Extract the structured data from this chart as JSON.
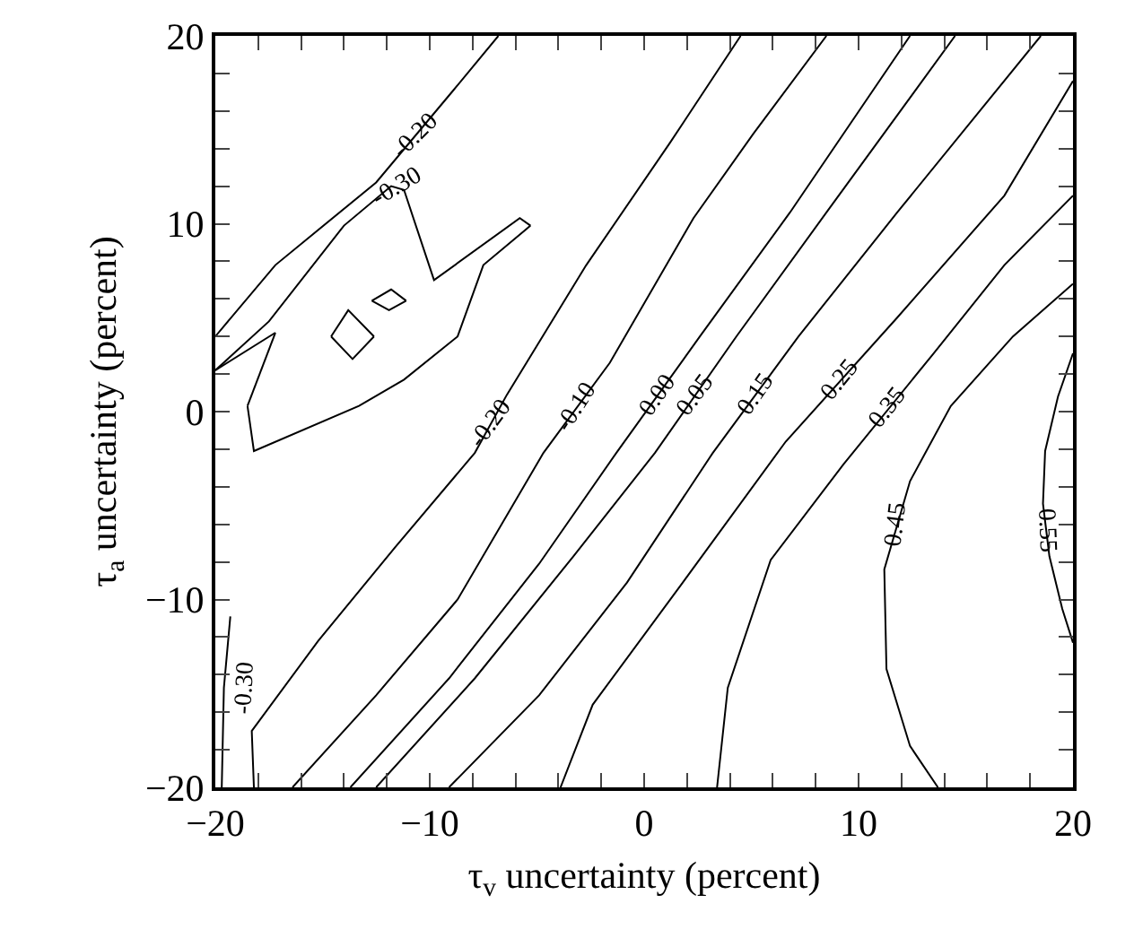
{
  "chart_data": {
    "type": "line",
    "xlabel": "τ$_{v}$ uncertainty (percent)",
    "ylabel": "τ$_{a}$ uncertainty (percent)",
    "xlim": [
      -20,
      20
    ],
    "ylim": [
      -20,
      20
    ],
    "xticks": [
      -20,
      {
        "value": -18,
        "label": null
      },
      {
        "value": -16,
        "label": null
      },
      {
        "value": -14,
        "label": null
      },
      {
        "value": -12,
        "label": null
      },
      -10,
      {
        "value": -8,
        "label": null
      },
      {
        "value": -6,
        "label": null
      },
      {
        "value": -4,
        "label": null
      },
      {
        "value": -2,
        "label": null
      },
      0,
      {
        "value": 2,
        "label": null
      },
      {
        "value": 4,
        "label": null
      },
      {
        "value": 6,
        "label": null
      },
      {
        "value": 8,
        "label": null
      },
      10,
      {
        "value": 12,
        "label": null
      },
      {
        "value": 14,
        "label": null
      },
      {
        "value": 16,
        "label": null
      },
      {
        "value": 18,
        "label": null
      },
      20
    ],
    "yticks": [
      -20,
      {
        "value": -18,
        "label": null
      },
      {
        "value": -16,
        "label": null
      },
      {
        "value": -14,
        "label": null
      },
      {
        "value": -12,
        "label": null
      },
      -10,
      {
        "value": -8,
        "label": null
      },
      {
        "value": -6,
        "label": null
      },
      {
        "value": -4,
        "label": null
      },
      {
        "value": -2,
        "label": null
      },
      0,
      {
        "value": 2,
        "label": null
      },
      {
        "value": 4,
        "label": null
      },
      {
        "value": 6,
        "label": null
      },
      {
        "value": 8,
        "label": null
      },
      10,
      {
        "value": 12,
        "label": null
      },
      {
        "value": 14,
        "label": null
      },
      {
        "value": 16,
        "label": null
      },
      {
        "value": 18,
        "label": null
      },
      20
    ],
    "grid": false,
    "legend": false,
    "marker": "none",
    "line_style": "solid",
    "series": [
      {
        "name": "-0.30",
        "color": "#000000",
        "x": [
          -20,
          -17.5,
          -14,
          -11.8,
          -11.2,
          -9.8,
          -5.8,
          -5.3,
          null,
          -5.3,
          -7.5,
          -8.7,
          -11.2,
          -13.3,
          -18.2,
          -18.5,
          null,
          -18.5,
          -17.2,
          null,
          -17.2,
          -20,
          null,
          -14.6,
          -13.8,
          -12.6,
          null,
          -12.6,
          -13.6,
          -14.6,
          null,
          -12.7,
          -11.8,
          -11.1,
          null,
          -11.1,
          -11.9,
          -12.7,
          null,
          -19.7,
          -19.6,
          -19.3
        ],
        "values": [
          2.2,
          4.8,
          9.9,
          12,
          11.8,
          7,
          10.3,
          9.9,
          null,
          9.9,
          7.8,
          4,
          1.7,
          0.3,
          -2.1,
          0.3,
          null,
          0.3,
          4.2,
          null,
          4.2,
          2.2,
          null,
          4,
          5.4,
          4,
          null,
          4,
          2.8,
          4,
          null,
          5.9,
          6.5,
          5.9,
          null,
          5.9,
          5.4,
          5.9,
          null,
          -20,
          -14.7,
          -10.9
        ]
      },
      {
        "name": "-0.20",
        "color": "#000000",
        "x": [
          -20,
          -17.2,
          -12.5,
          -8.9,
          -6.8,
          null,
          -18.2,
          -18.3,
          -15.2,
          -11.6,
          -7.9,
          -6.4,
          -2.7,
          1.2,
          4.5
        ],
        "values": [
          4,
          7.8,
          12.2,
          17.1,
          20,
          null,
          -20,
          -17,
          -12.2,
          -7.2,
          -2.2,
          0.9,
          7.8,
          14.3,
          20
        ]
      },
      {
        "name": "-0.10",
        "color": "#000000",
        "x": [
          -16.4,
          -12.5,
          -8.7,
          -4.7,
          -1.6,
          2.3,
          5.1,
          8.5
        ],
        "values": [
          -20,
          -15.1,
          -10,
          -2.2,
          2.6,
          10.3,
          14.8,
          20
        ]
      },
      {
        "name": "0.00",
        "color": "#000000",
        "x": [
          -13.7,
          -9.1,
          -4.9,
          -1.3,
          2.6,
          6.8,
          12.4
        ],
        "values": [
          -20,
          -14.2,
          -8.1,
          -2.2,
          4,
          10.6,
          20
        ]
      },
      {
        "name": "0.05",
        "color": "#000000",
        "x": [
          -12.5,
          -7.9,
          -3.3,
          0.5,
          4.3,
          8.5,
          14.5
        ],
        "values": [
          -20,
          -14.2,
          -7.7,
          -2.2,
          4,
          10.6,
          20
        ]
      },
      {
        "name": "0.15",
        "color": "#000000",
        "x": [
          -9.1,
          -4.9,
          -0.8,
          3.2,
          7.2,
          11.8,
          18.5
        ],
        "values": [
          -20,
          -15.1,
          -9.1,
          -2.2,
          4,
          10.6,
          20
        ]
      },
      {
        "name": "0.25",
        "color": "#000000",
        "x": [
          -3.9,
          -2.4,
          1.8,
          6.6,
          11.8,
          16.8,
          20
        ],
        "values": [
          -20,
          -15.6,
          -9.1,
          -1.6,
          5,
          11.5,
          17.6
        ]
      },
      {
        "name": "0.35",
        "color": "#000000",
        "x": [
          3.4,
          3.9,
          5.9,
          9.3,
          13.5,
          16.8,
          20
        ],
        "values": [
          -20,
          -14.7,
          -7.9,
          -2.8,
          3.1,
          7.8,
          11.5
        ]
      },
      {
        "name": "0.45",
        "color": "#000000",
        "x": [
          13.7,
          12.4,
          11.3,
          11.2,
          12.4,
          14.3,
          17.2,
          20
        ],
        "values": [
          -20,
          -17.8,
          -13.7,
          -8.4,
          -3.7,
          0.3,
          4,
          6.8
        ]
      },
      {
        "name": "0.55",
        "color": "#000000",
        "x": [
          20,
          19.3,
          18.7,
          18.6,
          18.9,
          19.5,
          20
        ],
        "values": [
          3.1,
          0.8,
          -2.1,
          -4.9,
          -7.7,
          -10.5,
          -12.3
        ]
      }
    ]
  }
}
